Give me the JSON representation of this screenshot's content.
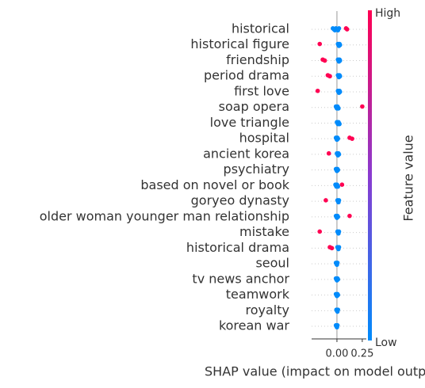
{
  "chart_data": {
    "type": "beeswarm",
    "xlabel": "SHAP value (impact on model output)",
    "categories": [
      "historical",
      "historical figure",
      "friendship",
      "period drama",
      "first love",
      "soap opera",
      "love triangle",
      "hospital",
      "ancient korea",
      "psychiatry",
      "based on novel or book",
      "goryeo dynasty",
      "older woman younger man relationship",
      "mistake",
      "historical drama",
      "seoul",
      "tv news anchor",
      "teamwork",
      "royalty",
      "korean war"
    ],
    "low_values": [
      [
        -0.04,
        -0.03,
        -0.02,
        -0.01,
        0,
        0.01,
        0.02
      ],
      [
        0.01,
        0.015,
        0.02,
        0.025,
        0.03
      ],
      [
        0.01,
        0.015,
        0.02,
        0.025,
        0.03
      ],
      [
        0.01,
        0.015,
        0.02,
        0.025,
        0.03
      ],
      [
        0.01,
        0.015,
        0.02,
        0.025,
        0.03
      ],
      [
        -0.01,
        -0.005,
        0,
        0.005,
        0.01,
        0.015
      ],
      [
        0,
        0.005,
        0.01,
        0.015,
        0.02,
        0.025
      ],
      [
        -0.01,
        -0.005,
        0,
        0.005,
        0.01
      ],
      [
        0,
        0.005,
        0.01,
        0.015,
        0.02
      ],
      [
        -0.01,
        -0.005,
        0,
        0.005,
        0.01
      ],
      [
        -0.015,
        -0.01,
        -0.005,
        0,
        0.005,
        0.01
      ],
      [
        0.005,
        0.01,
        0.015,
        0.02
      ],
      [
        -0.01,
        -0.005,
        0,
        0.005,
        0.01
      ],
      [
        0.005,
        0.01,
        0.015,
        0.02
      ],
      [
        0.005,
        0.01,
        0.015,
        0.02
      ],
      [
        -0.01,
        -0.005,
        0,
        0.005
      ],
      [
        -0.01,
        -0.005,
        0,
        0.005,
        0.01
      ],
      [
        -0.01,
        -0.005,
        0,
        0.005,
        0.01
      ],
      [
        -0.005,
        0,
        0.005,
        0.01
      ],
      [
        -0.01,
        -0.005,
        0,
        0.005
      ]
    ],
    "high_values": [
      [
        0.09,
        0.1
      ],
      [
        -0.17
      ],
      [
        -0.14,
        -0.12
      ],
      [
        -0.09,
        -0.07
      ],
      [
        -0.19
      ],
      [
        0.25
      ],
      [],
      [
        0.125,
        0.15
      ],
      [
        -0.08
      ],
      [],
      [
        0.05
      ],
      [
        -0.11
      ],
      [
        0.125
      ],
      [
        -0.17
      ],
      [
        -0.07,
        -0.05
      ],
      [],
      [],
      [],
      [],
      []
    ],
    "low_color": "#008bfb",
    "high_color": "#ff0052",
    "xlim": [
      -0.25,
      0.29
    ],
    "xticks": [
      {
        "value": 0,
        "label": "0.00"
      },
      {
        "value": 0.25,
        "label": "0.25"
      }
    ],
    "colorbar": {
      "title": "Feature value",
      "high_label": "High",
      "low_label": "Low"
    }
  }
}
